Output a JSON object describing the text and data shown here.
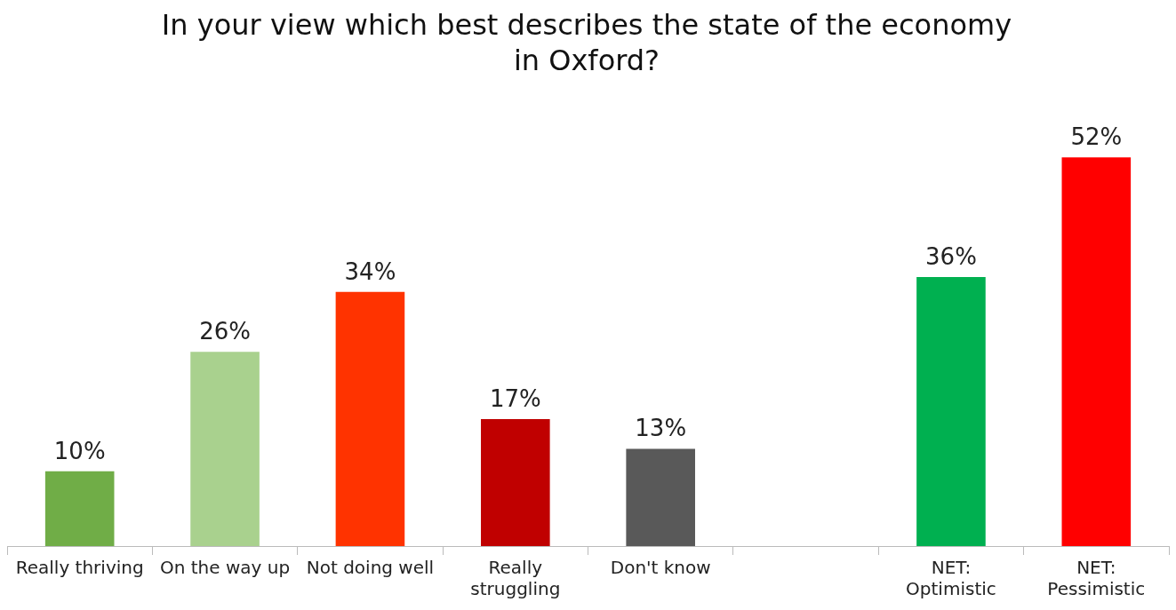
{
  "chart_data": {
    "type": "bar",
    "title": "In your view which best describes the state of the economy in Oxford?",
    "categories": [
      "Really thriving",
      "On the way up",
      "Not doing well",
      "Really struggling",
      "Don't know",
      null,
      "NET: Optimistic",
      "NET: Pessimistic"
    ],
    "values": [
      10,
      26,
      34,
      17,
      13,
      null,
      36,
      52
    ],
    "value_labels": [
      "10%",
      "26%",
      "34%",
      "17%",
      "13%",
      null,
      "36%",
      "52%"
    ],
    "colors": [
      "#70ad47",
      "#a9d18e",
      "#ff3300",
      "#c00000",
      "#595959",
      "#ffffff",
      "#00b050",
      "#ff0000"
    ],
    "grid": false,
    "legend": false
  }
}
